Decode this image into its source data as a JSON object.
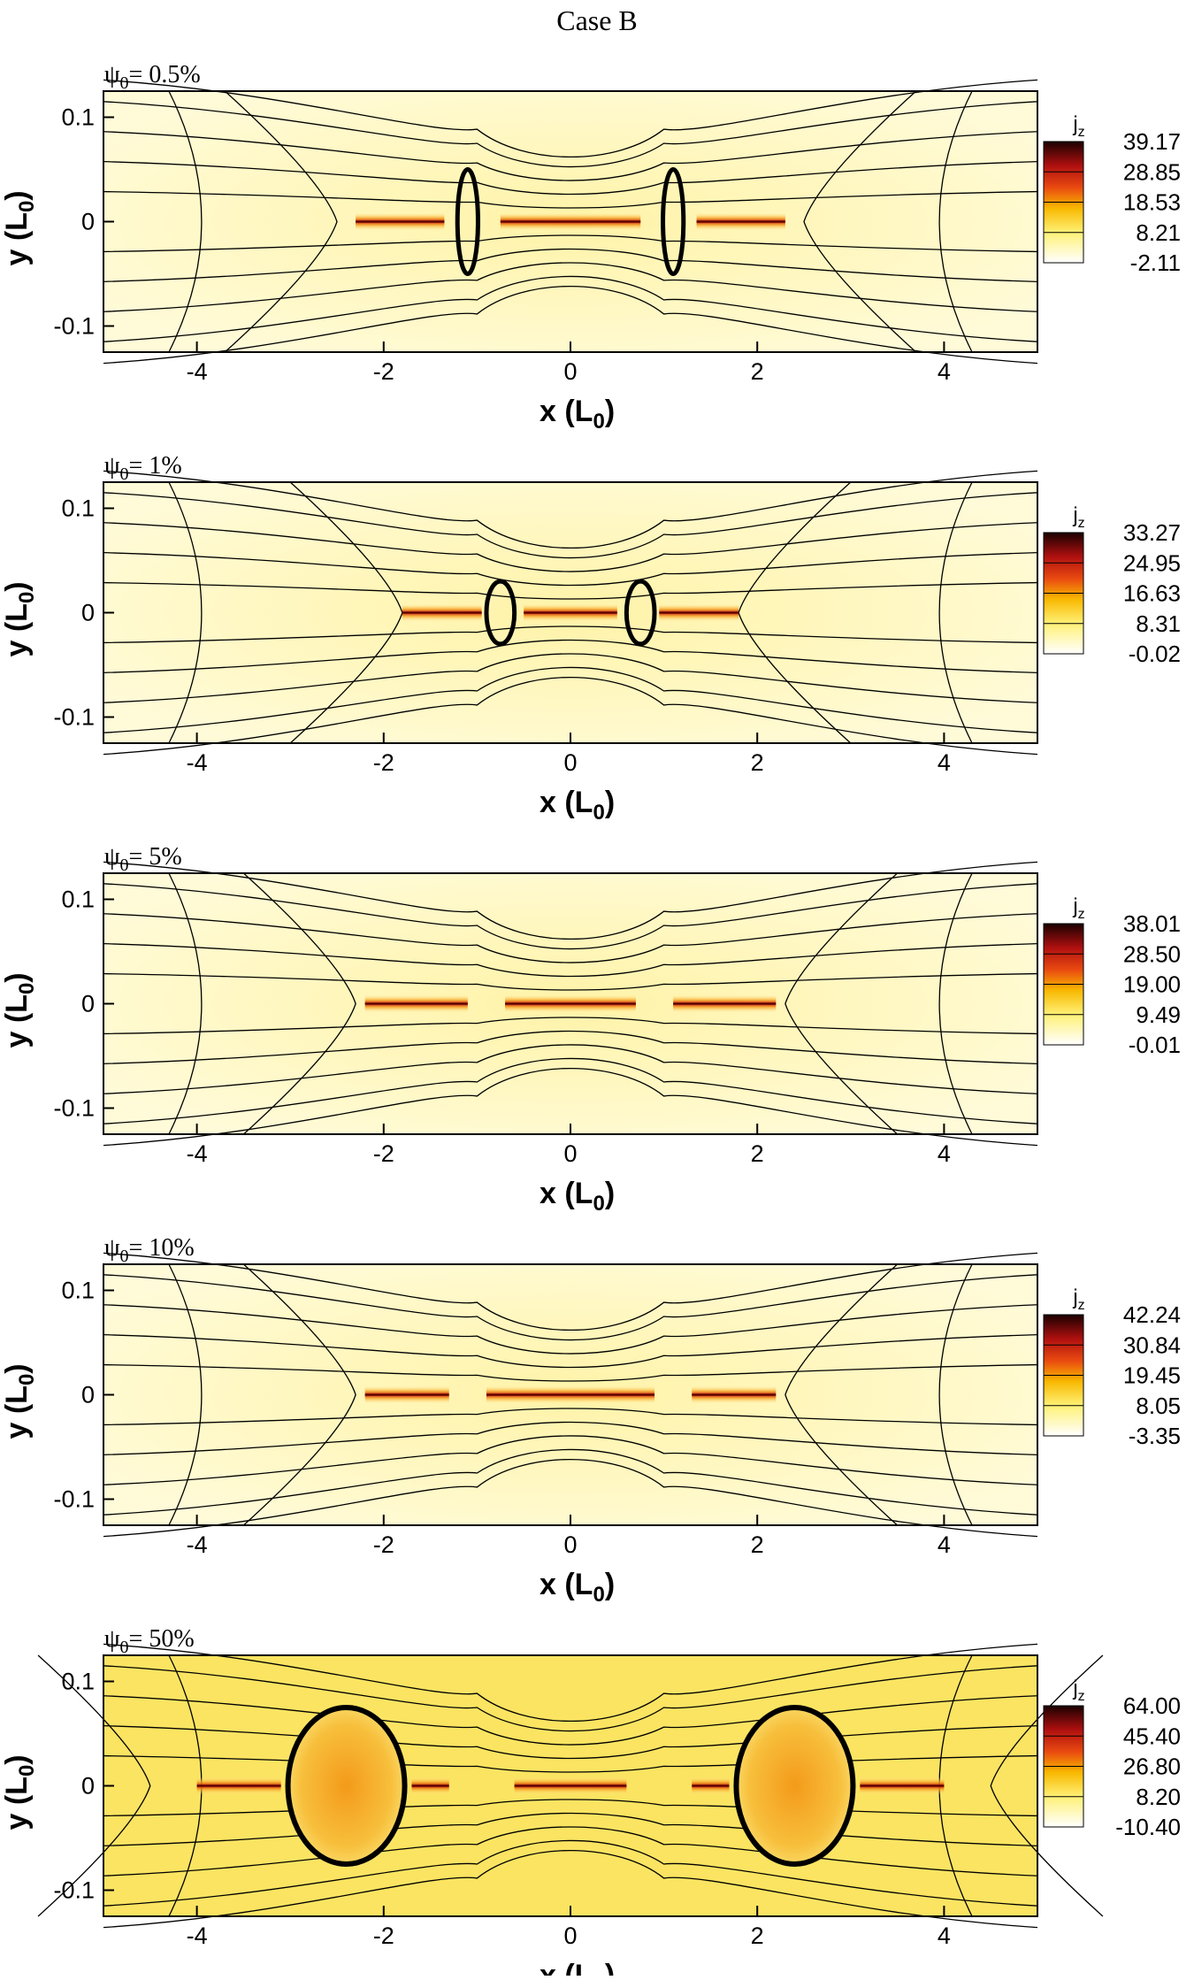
{
  "figure_title": "Case B",
  "axes": {
    "x_label": "x",
    "x_label_sub": "(L",
    "x_unit_sub": "0",
    "x_unit_close": ")",
    "y_label": "y",
    "y_unit_sub": "0",
    "x_ticks": [
      "-4",
      "-2",
      "0",
      "2",
      "4"
    ],
    "y_ticks": [
      "0.1",
      "0",
      "-0.1"
    ],
    "xlim": [
      -5,
      5
    ],
    "ylim": [
      -0.125,
      0.125
    ],
    "x_tick_values": [
      -4,
      -2,
      0,
      2,
      4
    ],
    "y_tick_values": [
      0.1,
      0,
      -0.1
    ]
  },
  "colorbar_label_main": "j",
  "colorbar_label_sub": "z",
  "chart_data": [
    {
      "type": "heatmap",
      "panel_label": "ψ",
      "panel_label_sub": "0",
      "panel_label_value": "= 0.5%",
      "colorbar_ticks": [
        "39.17",
        "28.85",
        "18.53",
        "8.21",
        "-2.11"
      ],
      "colorbar_range": [
        -2.11,
        39.17
      ],
      "islands": [
        {
          "x": -1.1,
          "w": 0.22,
          "h": 0.05
        },
        {
          "x": 1.1,
          "w": 0.22,
          "h": 0.05
        }
      ],
      "sheet_segments": [
        [
          -2.3,
          -1.35
        ],
        [
          -0.75,
          0.75
        ],
        [
          1.35,
          2.3
        ]
      ],
      "separatrix_x": [
        -2.5,
        2.5
      ]
    },
    {
      "type": "heatmap",
      "panel_label": "ψ",
      "panel_label_sub": "0",
      "panel_label_value": "= 1%",
      "colorbar_ticks": [
        "33.27",
        "24.95",
        "16.63",
        "8.31",
        "-0.02"
      ],
      "colorbar_range": [
        -0.02,
        33.27
      ],
      "islands": [
        {
          "x": -0.75,
          "w": 0.3,
          "h": 0.03
        },
        {
          "x": 0.75,
          "w": 0.3,
          "h": 0.03
        }
      ],
      "sheet_segments": [
        [
          -1.8,
          -0.95
        ],
        [
          -0.5,
          0.5
        ],
        [
          0.95,
          1.8
        ]
      ],
      "separatrix_x": [
        -1.8,
        1.8
      ]
    },
    {
      "type": "heatmap",
      "panel_label": "ψ",
      "panel_label_sub": "0",
      "panel_label_value": "= 5%",
      "colorbar_ticks": [
        "38.01",
        "28.50",
        "19.00",
        "9.49",
        "-0.01"
      ],
      "colorbar_range": [
        -0.01,
        38.01
      ],
      "islands": [],
      "sheet_segments": [
        [
          -2.2,
          -1.1
        ],
        [
          -0.7,
          0.7
        ],
        [
          1.1,
          2.2
        ]
      ],
      "separatrix_x": [
        -2.3,
        2.3
      ]
    },
    {
      "type": "heatmap",
      "panel_label": "ψ",
      "panel_label_sub": "0",
      "panel_label_value": "= 10%",
      "colorbar_ticks": [
        "42.24",
        "30.84",
        "19.45",
        "8.05",
        "-3.35"
      ],
      "colorbar_range": [
        -3.35,
        42.24
      ],
      "islands": [],
      "sheet_segments": [
        [
          -2.2,
          -1.3
        ],
        [
          -0.9,
          0.9
        ],
        [
          1.3,
          2.2
        ]
      ],
      "separatrix_x": [
        -2.3,
        2.3
      ]
    },
    {
      "type": "heatmap",
      "panel_label": "ψ",
      "panel_label_sub": "0",
      "panel_label_value": "= 50%",
      "colorbar_ticks": [
        "64.00",
        "45.40",
        "26.80",
        "8.20",
        "-10.40"
      ],
      "colorbar_range": [
        -10.4,
        64.0
      ],
      "islands": [
        {
          "x": -2.4,
          "w": 1.25,
          "h": 0.075
        },
        {
          "x": 2.4,
          "w": 1.25,
          "h": 0.075
        }
      ],
      "sheet_segments": [
        [
          -4.0,
          -3.1
        ],
        [
          -1.7,
          -1.3
        ],
        [
          -0.6,
          0.6
        ],
        [
          1.3,
          1.7
        ],
        [
          3.1,
          4.0
        ]
      ],
      "separatrix_x": [
        -4.5,
        4.5
      ]
    }
  ]
}
